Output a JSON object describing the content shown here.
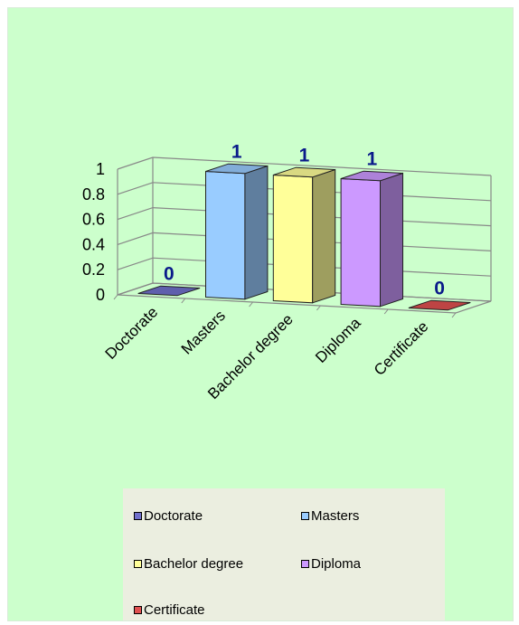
{
  "chart_data": {
    "type": "bar",
    "categories": [
      "Doctorate",
      "Masters",
      "Bachelor degree",
      "Diploma",
      "Certificate"
    ],
    "values": [
      0,
      1,
      1,
      1,
      0
    ],
    "data_labels": [
      "0",
      "1",
      "1",
      "1",
      "0"
    ],
    "colors": [
      "#7070cc",
      "#99ccff",
      "#ffff99",
      "#cc99ff",
      "#e05050"
    ],
    "ylim": [
      0,
      1
    ],
    "yticks": [
      "0",
      "0.2",
      "0.4",
      "0.6",
      "0.8",
      "1"
    ],
    "grid": true,
    "legend_position": "bottom",
    "projection": "3d"
  },
  "legend": {
    "items": [
      {
        "label": "Doctorate",
        "color": "#7070cc"
      },
      {
        "label": "Masters",
        "color": "#99ccff"
      },
      {
        "label": "Bachelor degree",
        "color": "#ffff99"
      },
      {
        "label": "Diploma",
        "color": "#cc99ff"
      },
      {
        "label": "Certificate",
        "color": "#e05050"
      }
    ]
  },
  "colors": {
    "chart_background": "#ccffcc",
    "legend_background": "#ebeee0",
    "data_label": "#0a1a8a"
  }
}
